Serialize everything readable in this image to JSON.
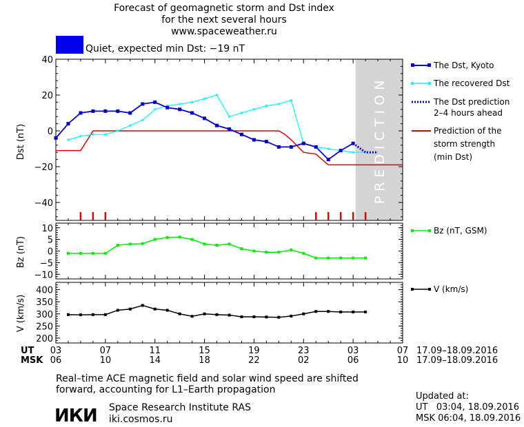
{
  "header": {
    "title_line1": "Forecast of geomagnetic storm and Dst index",
    "title_line2": "for the next several hours",
    "site": "www.spaceweather.ru",
    "status_label": "Quiet, expected min Dst: −19 nT",
    "status_color": "#0000ee"
  },
  "legend": {
    "dst_kyoto": "The Dst, Kyoto",
    "dst_recovered": "The recovered Dst",
    "dst_prediction_l1": "The Dst prediction",
    "dst_prediction_l2": "2–4 hours ahead",
    "storm_l1": "Prediction of the",
    "storm_l2": "storm strength",
    "storm_l3": "(min Dst)",
    "bz": "Bz (nT, GSM)",
    "v": "V (km/s)"
  },
  "axes": {
    "dst_label": "Dst (nT)",
    "bz_label": "Bz (nT)",
    "v_label": "V (km/s)",
    "prediction_text": "PREDICTION",
    "ut_label": "UT",
    "msk_label": "MSK",
    "ut_ticks": [
      "03",
      "07",
      "11",
      "15",
      "19",
      "23",
      "03",
      "07"
    ],
    "msk_ticks": [
      "06",
      "10",
      "14",
      "18",
      "22",
      "02",
      "06",
      "10"
    ],
    "date_range_ut": "17.09–18.09.2016",
    "date_range_msk": "17.09–18.09.2016"
  },
  "footer": {
    "note_line1": "Real–time ACE magnetic field and solar wind speed are shifted",
    "note_line2": "forward, accounting for L1–Earth propagation",
    "logo_text": "ИКИ",
    "institute": "Space Research Institute RAS",
    "website": "iki.cosmos.ru",
    "updated_label": "Updated at:",
    "updated_ut": "UT   03:04, 18.09.2016",
    "updated_msk": "MSK 06:04, 18.09.2016"
  },
  "colors": {
    "dst_kyoto": "#0000cc",
    "dst_recovered": "#00ffff",
    "dst_prediction": "#0000cc",
    "storm": "#dd0000",
    "bz": "#00ee00",
    "v": "#000000",
    "prediction_band": "#d4d4d4"
  },
  "chart_data": [
    {
      "type": "line",
      "name": "Dst panel",
      "ylabel": "Dst (nT)",
      "ylim": [
        -50,
        40
      ],
      "yticks": [
        40,
        20,
        0,
        -20,
        -40
      ],
      "xlim": [
        3,
        31
      ],
      "prediction_start": 27.2,
      "series": [
        {
          "name": "The Dst, Kyoto",
          "x": [
            3,
            4,
            5,
            6,
            7,
            8,
            9,
            10,
            11,
            12,
            13,
            14,
            15,
            16,
            17,
            18,
            19,
            20,
            21,
            22,
            23,
            24,
            25,
            26,
            27
          ],
          "y": [
            -4,
            4,
            10,
            11,
            11,
            11,
            10,
            15,
            16,
            13,
            12,
            10,
            7,
            3,
            1,
            -2,
            -5,
            -6,
            -9,
            -9,
            -7,
            -9,
            -16,
            -11,
            -7
          ]
        },
        {
          "name": "The recovered Dst",
          "x": [
            4,
            5,
            6,
            7,
            8,
            9,
            10,
            11,
            12,
            13,
            14,
            15,
            16,
            17,
            18,
            19,
            20,
            21,
            22,
            23,
            24,
            25,
            26,
            27,
            28
          ],
          "y": [
            -5,
            -3,
            -2,
            -2,
            0,
            3,
            6,
            12,
            14,
            15,
            16,
            18,
            20,
            8,
            10,
            12,
            14,
            15,
            17,
            -7,
            -9,
            -10,
            -11,
            -12,
            -12
          ]
        },
        {
          "name": "The Dst prediction 2–4 hours ahead",
          "x": [
            27,
            28,
            29
          ],
          "y": [
            -7,
            -12,
            -12
          ]
        },
        {
          "name": "Prediction of the storm strength (min Dst)",
          "x": [
            3,
            5,
            6,
            10,
            14,
            18,
            20,
            21,
            21.5,
            22,
            23,
            24,
            25,
            26,
            31
          ],
          "y": [
            -11,
            -11,
            0,
            0,
            0,
            0,
            0,
            0,
            -2,
            -5,
            -12,
            -13,
            -19,
            -19,
            -19
          ]
        }
      ],
      "event_markers_x": [
        5,
        6,
        7,
        24,
        25,
        26,
        27,
        28
      ]
    },
    {
      "type": "line",
      "name": "Bz panel",
      "ylabel": "Bz (nT)",
      "ylim": [
        -12,
        12
      ],
      "yticks": [
        10,
        5,
        0,
        -5,
        -10
      ],
      "series": [
        {
          "name": "Bz (nT, GSM)",
          "x": [
            4,
            5,
            6,
            7,
            8,
            9,
            10,
            11,
            12,
            13,
            14,
            15,
            16,
            17,
            18,
            19,
            20,
            21,
            22,
            23,
            24,
            25,
            26,
            27,
            28
          ],
          "y": [
            -1,
            -1,
            -1,
            -1,
            2.5,
            3,
            3.2,
            5,
            5.8,
            6,
            5,
            3,
            2.5,
            3,
            1,
            0,
            -0.5,
            -0.5,
            0.5,
            -1,
            -3,
            -3,
            -3,
            -3,
            -3
          ]
        }
      ]
    },
    {
      "type": "line",
      "name": "V panel",
      "ylabel": "V (km/s)",
      "ylim": [
        180,
        430
      ],
      "yticks": [
        400,
        350,
        300,
        250,
        200
      ],
      "series": [
        {
          "name": "V (km/s)",
          "x": [
            4,
            5,
            6,
            7,
            8,
            9,
            10,
            11,
            12,
            13,
            14,
            15,
            16,
            17,
            18,
            19,
            20,
            21,
            22,
            23,
            24,
            25,
            26,
            27,
            28
          ],
          "y": [
            297,
            296,
            297,
            297,
            315,
            320,
            335,
            320,
            315,
            300,
            290,
            300,
            297,
            295,
            288,
            288,
            287,
            286,
            291,
            300,
            310,
            310,
            308,
            308,
            308
          ]
        }
      ]
    }
  ]
}
